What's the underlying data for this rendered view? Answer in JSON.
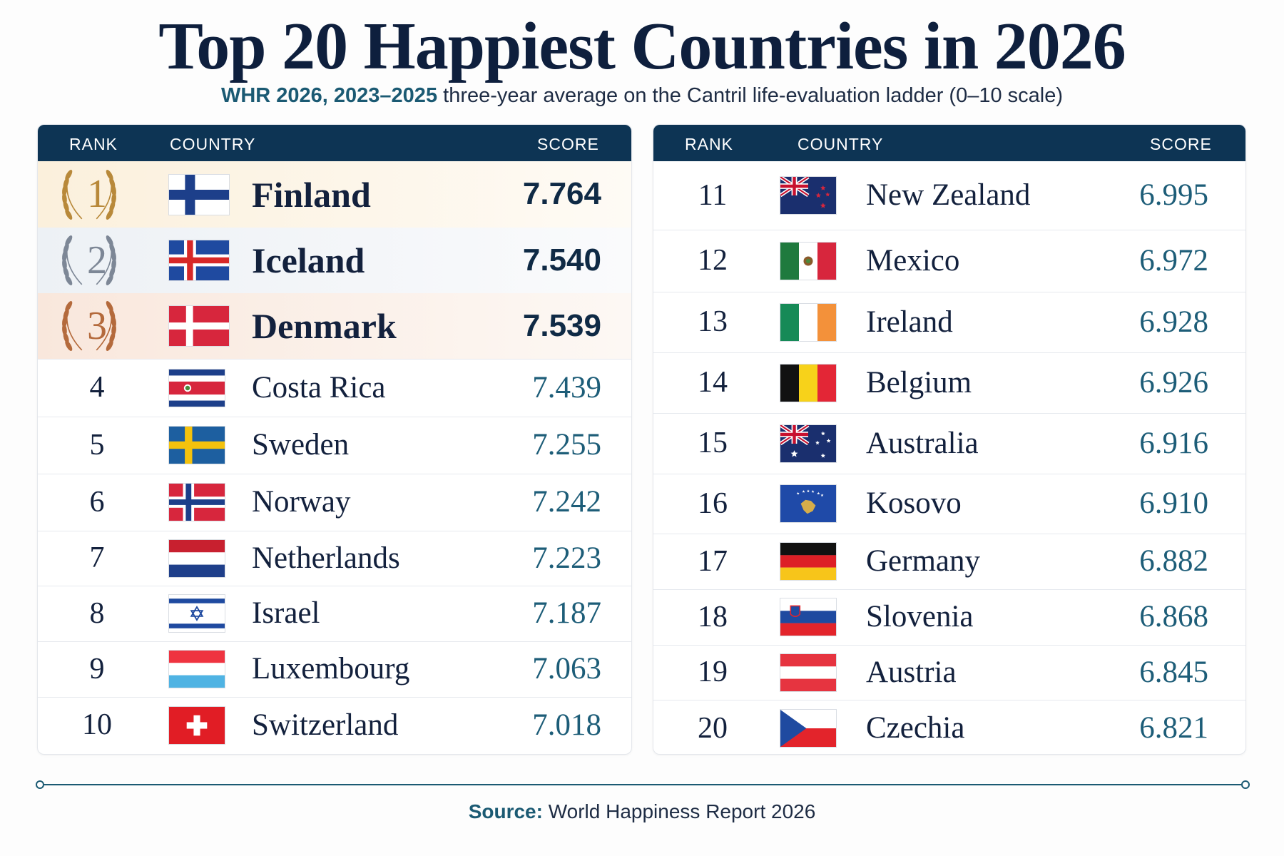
{
  "title": "Top 20 Happiest Countries in 2026",
  "subtitle": {
    "highlight": "WHR 2026, 2023–2025",
    "rest": "three-year average on the Cantril life-evaluation ladder (0–10 scale)"
  },
  "table_headers": {
    "rank": "RANK",
    "country": "COUNTRY",
    "score": "SCORE"
  },
  "source": {
    "label": "Source:",
    "text": "World Happiness Report 2026"
  },
  "colors": {
    "header": "#0d3454",
    "score": "#1d5d78",
    "gold": "#b8893a",
    "silver": "#7d8796",
    "bronze": "#b46a3c"
  },
  "chart_data": {
    "type": "table",
    "title": "Top 20 Happiest Countries in 2026",
    "columns": [
      "RANK",
      "COUNTRY",
      "SCORE"
    ],
    "rows": [
      {
        "rank": "1",
        "country": "Finland",
        "score": "7.764",
        "flag": "finland-flag",
        "medal": "gold"
      },
      {
        "rank": "2",
        "country": "Iceland",
        "score": "7.540",
        "flag": "iceland-flag",
        "medal": "silver"
      },
      {
        "rank": "3",
        "country": "Denmark",
        "score": "7.539",
        "flag": "denmark-flag",
        "medal": "bronze"
      },
      {
        "rank": "4",
        "country": "Costa Rica",
        "score": "7.439",
        "flag": "costa-rica-flag"
      },
      {
        "rank": "5",
        "country": "Sweden",
        "score": "7.255",
        "flag": "sweden-flag"
      },
      {
        "rank": "6",
        "country": "Norway",
        "score": "7.242",
        "flag": "norway-flag"
      },
      {
        "rank": "7",
        "country": "Netherlands",
        "score": "7.223",
        "flag": "netherlands-flag"
      },
      {
        "rank": "8",
        "country": "Israel",
        "score": "7.187",
        "flag": "israel-flag"
      },
      {
        "rank": "9",
        "country": "Luxembourg",
        "score": "7.063",
        "flag": "luxembourg-flag"
      },
      {
        "rank": "10",
        "country": "Switzerland",
        "score": "7.018",
        "flag": "switzerland-flag"
      },
      {
        "rank": "11",
        "country": "New Zealand",
        "score": "6.995",
        "flag": "new-zealand-flag"
      },
      {
        "rank": "12",
        "country": "Mexico",
        "score": "6.972",
        "flag": "mexico-flag"
      },
      {
        "rank": "13",
        "country": "Ireland",
        "score": "6.928",
        "flag": "ireland-flag"
      },
      {
        "rank": "14",
        "country": "Belgium",
        "score": "6.926",
        "flag": "belgium-flag"
      },
      {
        "rank": "15",
        "country": "Australia",
        "score": "6.916",
        "flag": "australia-flag"
      },
      {
        "rank": "16",
        "country": "Kosovo",
        "score": "6.910",
        "flag": "kosovo-flag"
      },
      {
        "rank": "17",
        "country": "Germany",
        "score": "6.882",
        "flag": "germany-flag"
      },
      {
        "rank": "18",
        "country": "Slovenia",
        "score": "6.868",
        "flag": "slovenia-flag"
      },
      {
        "rank": "19",
        "country": "Austria",
        "score": "6.845",
        "flag": "austria-flag"
      },
      {
        "rank": "20",
        "country": "Czechia",
        "score": "6.821",
        "flag": "czechia-flag"
      }
    ]
  }
}
